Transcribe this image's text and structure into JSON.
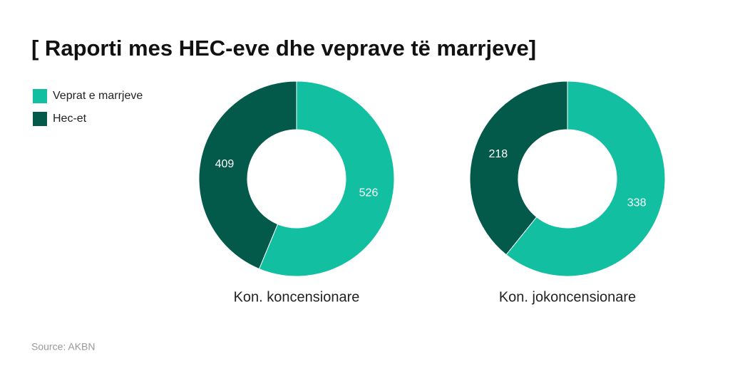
{
  "title": "[ Raporti mes HEC-eve dhe veprave të marrjeve]",
  "source": "Source: AKBN",
  "chart_data": [
    {
      "type": "donut",
      "title": "Kon. koncensionare",
      "categories": [
        "Veprat e marrjeve",
        "Hec-et"
      ],
      "values": [
        526,
        409
      ],
      "colors": [
        "#12bfa1",
        "#03594a"
      ]
    },
    {
      "type": "donut",
      "title": "Kon. jokoncensionare",
      "categories": [
        "Veprat e marrjeve",
        "Hec-et"
      ],
      "values": [
        338,
        218
      ],
      "colors": [
        "#12bfa1",
        "#03594a"
      ]
    }
  ]
}
